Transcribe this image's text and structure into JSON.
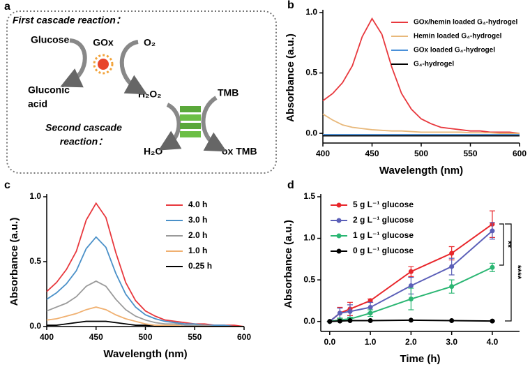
{
  "diagram": {
    "label": "a",
    "title": "First cascade reaction：",
    "glucose": "Glucose",
    "enzyme": "GOx",
    "oxygen": "O₂",
    "gluconic_acid": [
      "Gluconic",
      "acid"
    ],
    "peroxide": "H₂O₂",
    "tmb": "TMB",
    "second": [
      "Second cascade",
      "reaction："
    ],
    "water": "H₂O",
    "ox_tmb": "ox TMB"
  },
  "chart_data": [
    {
      "label": "b",
      "type": "line",
      "xlabel": "Wavelength (nm)",
      "ylabel": "Absorbance (a.u.)",
      "x": [
        400,
        410,
        420,
        430,
        440,
        450,
        460,
        470,
        480,
        490,
        500,
        510,
        520,
        530,
        540,
        550,
        560,
        570,
        580,
        590,
        600
      ],
      "xlim": [
        400,
        600
      ],
      "xticks": [
        400,
        450,
        500,
        550,
        600
      ],
      "ylim": [
        -0.08,
        1.0
      ],
      "yticks": [
        {
          "value": 0,
          "label": "0.0"
        },
        {
          "value": 0.5,
          "label": "0.5"
        },
        {
          "value": 1.0,
          "label": "1.0"
        }
      ],
      "legend": "upper right",
      "series": [
        {
          "name": "GOx/hemin loaded G₄-hydrogel",
          "color": "#e8383d",
          "values": [
            0.27,
            0.33,
            0.42,
            0.56,
            0.8,
            0.95,
            0.82,
            0.55,
            0.33,
            0.2,
            0.12,
            0.08,
            0.05,
            0.04,
            0.03,
            0.02,
            0.02,
            0.01,
            0.01,
            0.01,
            0.0
          ]
        },
        {
          "name": "Hemin loaded G₄-hydrogel",
          "color": "#e8b87a",
          "values": [
            0.16,
            0.11,
            0.07,
            0.05,
            0.04,
            0.03,
            0.025,
            0.02,
            0.02,
            0.015,
            0.01,
            0.01,
            0.01,
            0.01,
            0.01,
            0.005,
            0.005,
            0.005,
            0.0,
            0.0,
            0.0
          ]
        },
        {
          "name": "GOx loaded G₄-hydrogel",
          "color": "#4a90d9",
          "values": [
            -0.01,
            -0.01,
            -0.01,
            -0.01,
            -0.01,
            -0.01,
            -0.01,
            -0.01,
            -0.01,
            -0.01,
            -0.01,
            -0.01,
            -0.01,
            -0.01,
            -0.01,
            -0.01,
            -0.01,
            -0.01,
            -0.01,
            -0.01,
            -0.01
          ]
        },
        {
          "name": "G₄-hydrogel",
          "color": "#000000",
          "values": [
            -0.02,
            -0.02,
            -0.02,
            -0.02,
            -0.02,
            -0.02,
            -0.02,
            -0.02,
            -0.02,
            -0.02,
            -0.02,
            -0.02,
            -0.02,
            -0.02,
            -0.02,
            -0.02,
            -0.02,
            -0.02,
            -0.02,
            -0.02,
            -0.02
          ]
        }
      ]
    },
    {
      "label": "c",
      "type": "line",
      "xlabel": "Wavelength (nm)",
      "ylabel": "Absorbance (a.u.)",
      "x": [
        400,
        410,
        420,
        430,
        440,
        450,
        460,
        470,
        480,
        490,
        500,
        510,
        520,
        530,
        540,
        550,
        560,
        570,
        580,
        590,
        600
      ],
      "xlim": [
        400,
        600
      ],
      "xticks": [
        400,
        450,
        500,
        550,
        600
      ],
      "ylim": [
        0,
        1.0
      ],
      "yticks": [
        {
          "value": 0,
          "label": "0.0"
        },
        {
          "value": 0.5,
          "label": "0.5"
        },
        {
          "value": 1.0,
          "label": "1.0"
        }
      ],
      "legend": "upper right",
      "series": [
        {
          "name": "4.0 h",
          "color": "#e8383d",
          "values": [
            0.27,
            0.34,
            0.44,
            0.58,
            0.82,
            0.95,
            0.84,
            0.57,
            0.34,
            0.2,
            0.12,
            0.08,
            0.05,
            0.04,
            0.03,
            0.02,
            0.02,
            0.01,
            0.01,
            0.01,
            0.0
          ]
        },
        {
          "name": "3.0 h",
          "color": "#4a90c8",
          "values": [
            0.21,
            0.26,
            0.33,
            0.43,
            0.6,
            0.69,
            0.61,
            0.41,
            0.25,
            0.15,
            0.09,
            0.06,
            0.04,
            0.03,
            0.02,
            0.02,
            0.01,
            0.01,
            0.01,
            0.0,
            0.0
          ]
        },
        {
          "name": "2.0 h",
          "color": "#9a9a9a",
          "values": [
            0.12,
            0.15,
            0.18,
            0.23,
            0.31,
            0.35,
            0.31,
            0.21,
            0.13,
            0.08,
            0.05,
            0.03,
            0.02,
            0.02,
            0.01,
            0.01,
            0.01,
            0.0,
            0.0,
            0.0,
            0.0
          ]
        },
        {
          "name": "1.0 h",
          "color": "#f0b070",
          "values": [
            0.05,
            0.06,
            0.08,
            0.1,
            0.13,
            0.15,
            0.13,
            0.09,
            0.06,
            0.04,
            0.02,
            0.01,
            0.01,
            0.01,
            0.0,
            0.0,
            0.0,
            0.0,
            0.0,
            0.0,
            0.0
          ]
        },
        {
          "name": "0.25 h",
          "color": "#000000",
          "values": [
            0.01,
            0.01,
            0.02,
            0.03,
            0.04,
            0.04,
            0.04,
            0.03,
            0.02,
            0.01,
            0.01,
            0.0,
            0.0,
            0.0,
            0.0,
            0.0,
            0.0,
            0.0,
            0.0,
            0.0,
            0.0
          ]
        }
      ]
    },
    {
      "label": "d",
      "type": "line",
      "xlabel": "Time (h)",
      "ylabel": "Absorbance (a.u.)",
      "markers": true,
      "x": [
        0,
        0.25,
        0.5,
        1,
        2,
        3,
        4
      ],
      "xlim": [
        -0.22,
        4.67
      ],
      "xticks": [
        {
          "value": 0,
          "label": "0.0"
        },
        {
          "value": 1,
          "label": "1.0"
        },
        {
          "value": 2,
          "label": "2.0"
        },
        {
          "value": 3,
          "label": "3.0"
        },
        {
          "value": 4,
          "label": "4.0"
        }
      ],
      "ylim": [
        -0.12,
        1.5
      ],
      "yticks": [
        {
          "value": 0,
          "label": "0.0"
        },
        {
          "value": 0.5,
          "label": "0.5"
        },
        {
          "value": 1.0,
          "label": "1.0"
        },
        {
          "value": 1.5,
          "label": "1.5"
        }
      ],
      "legend": "upper left",
      "annotations": [
        "**",
        "****"
      ],
      "series": [
        {
          "name": "5 g L⁻¹ glucose",
          "color": "#e8262b",
          "values": [
            0,
            0.1,
            0.15,
            0.25,
            0.6,
            0.82,
            1.17
          ],
          "errors": [
            0,
            0.07,
            0.08,
            0.02,
            0.06,
            0.08,
            0.16
          ]
        },
        {
          "name": "2 g L⁻¹ glucose",
          "color": "#5b5fb8",
          "values": [
            0,
            0.1,
            0.12,
            0.17,
            0.43,
            0.66,
            1.09
          ],
          "errors": [
            0,
            0.06,
            0.08,
            0.06,
            0.1,
            0.1,
            0.1
          ]
        },
        {
          "name": "1 g L⁻¹ glucose",
          "color": "#2bb673",
          "values": [
            0,
            0.02,
            0.03,
            0.1,
            0.27,
            0.42,
            0.65
          ],
          "errors": [
            0,
            0.02,
            0.02,
            0.04,
            0.13,
            0.08,
            0.05
          ]
        },
        {
          "name": "0 g L⁻¹ glucose",
          "color": "#000000",
          "values": [
            0,
            0.005,
            0.01,
            0.01,
            0.015,
            0.01,
            0.005
          ],
          "errors": [
            0,
            0,
            0,
            0,
            0,
            0,
            0
          ]
        }
      ]
    }
  ]
}
